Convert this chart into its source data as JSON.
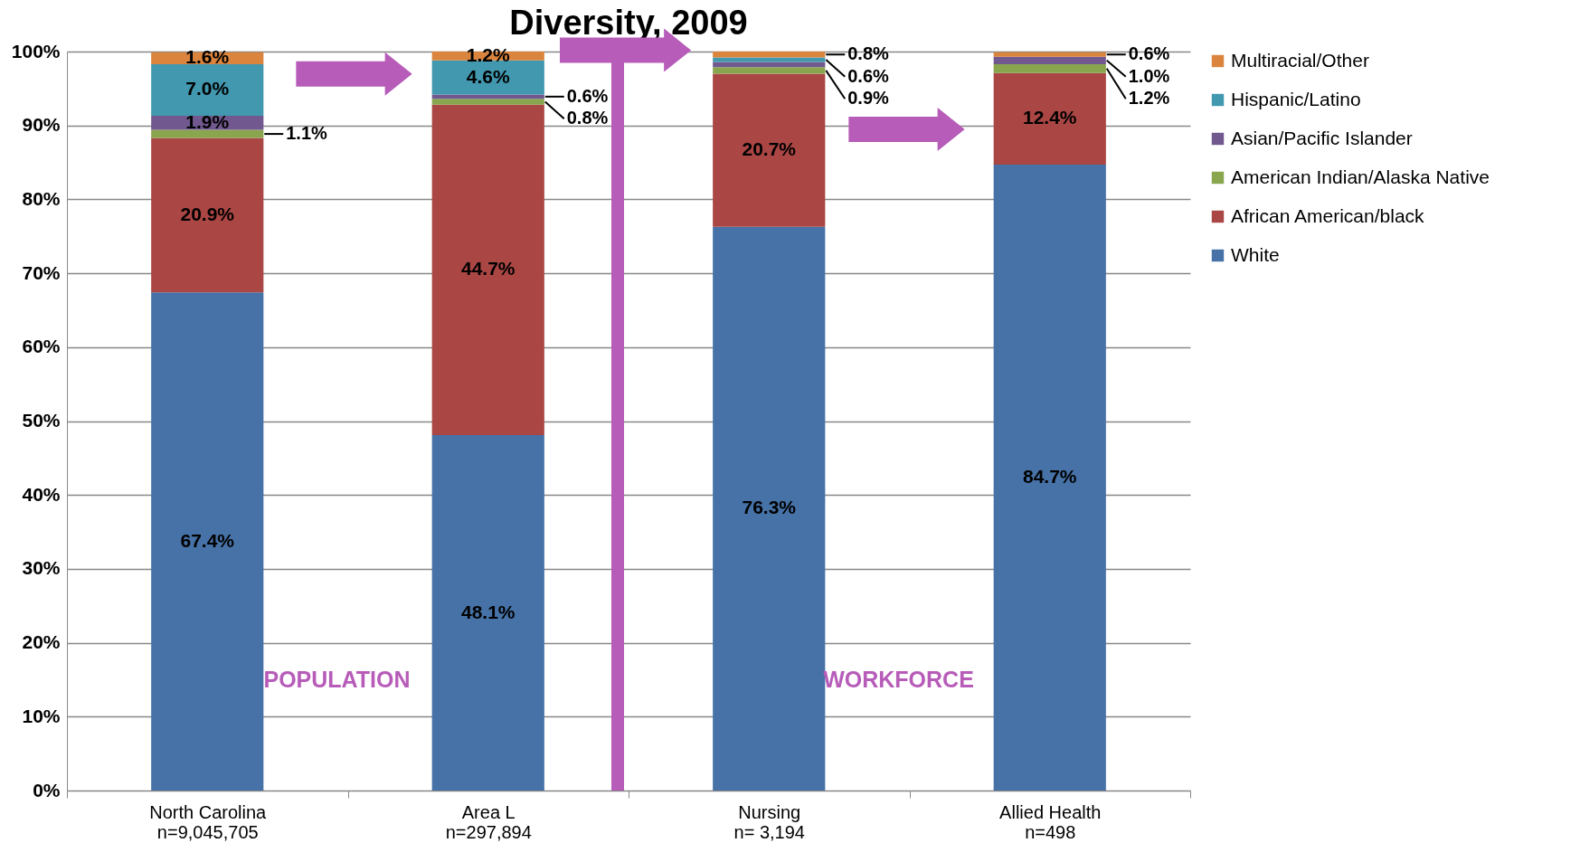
{
  "chart_data": {
    "type": "bar",
    "title": "Diversity, 2009",
    "stacked": true,
    "categories": [
      "North Carolina\nn=9,045,705",
      "Area L\nn=297,894",
      "Nursing\nn= 3,194",
      "Allied Health\nn=498"
    ],
    "series": [
      {
        "name": "White",
        "color": "#4672a7",
        "values": [
          67.4,
          48.1,
          76.3,
          84.7
        ],
        "value_labels": [
          "67.4%",
          "48.1%",
          "76.3%",
          "84.7%"
        ]
      },
      {
        "name": "African American/black",
        "color": "#aa4644",
        "values": [
          20.9,
          44.7,
          20.7,
          12.4
        ],
        "value_labels": [
          "20.9%",
          "44.7%",
          "20.7%",
          "12.4%"
        ]
      },
      {
        "name": "American Indian/Alaska Native",
        "color": "#89a54e",
        "values": [
          1.1,
          0.8,
          0.9,
          1.2
        ],
        "value_labels": [
          "1.1%",
          "0.8%",
          "0.9%",
          "1.2%"
        ]
      },
      {
        "name": "Asian/Pacific Islander",
        "color": "#71588f",
        "values": [
          1.9,
          0.6,
          0.7,
          1.0
        ],
        "value_labels": [
          "1.9%",
          "0.6%",
          null,
          "1.0%"
        ]
      },
      {
        "name": "Hispanic/Latino",
        "color": "#4198af",
        "values": [
          7.0,
          4.6,
          0.6,
          null
        ],
        "value_labels": [
          "7.0%",
          "4.6%",
          "0.6%",
          null
        ]
      },
      {
        "name": "Multiracial/Other",
        "color": "#db843d",
        "values": [
          1.6,
          1.2,
          0.8,
          0.6
        ],
        "value_labels": [
          "1.6%",
          "1.2%",
          "0.8%",
          "0.6%"
        ]
      }
    ],
    "ylim": [
      0,
      100
    ],
    "yticks": [
      {
        "value": 0,
        "label": "0%"
      },
      {
        "value": 10,
        "label": "10%"
      },
      {
        "value": 20,
        "label": "20%"
      },
      {
        "value": 30,
        "label": "30%"
      },
      {
        "value": 40,
        "label": "40%"
      },
      {
        "value": 50,
        "label": "50%"
      },
      {
        "value": 60,
        "label": "60%"
      },
      {
        "value": 70,
        "label": "70%"
      },
      {
        "value": 80,
        "label": "80%"
      },
      {
        "value": 90,
        "label": "90%"
      },
      {
        "value": 100,
        "label": "100%"
      }
    ],
    "grid": "y",
    "legend": "right",
    "annotations": [
      "POPULATION",
      "WORKFORCE"
    ]
  }
}
